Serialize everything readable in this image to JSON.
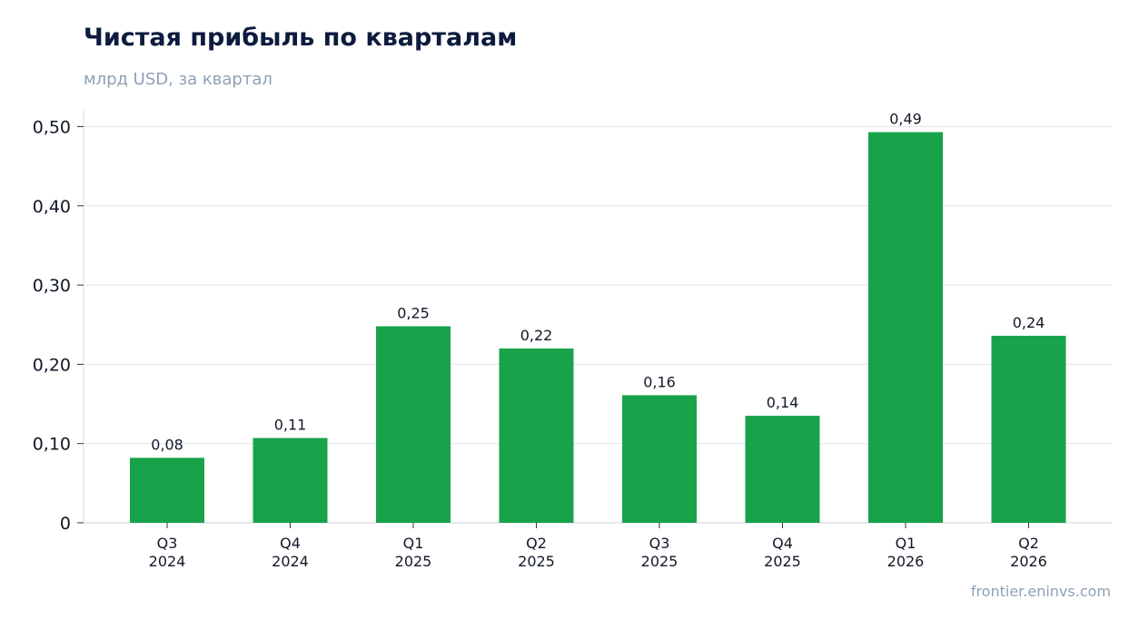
{
  "header": {
    "title": "Чистая прибыль по кварталам",
    "subtitle": "млрд USD, за квартал"
  },
  "footer": {
    "source": "frontier.eninvs.com"
  },
  "chart_data": {
    "type": "bar",
    "title": "Чистая прибыль по кварталам",
    "subtitle": "млрд USD, за квартал",
    "xlabel": "",
    "ylabel": "",
    "categories": [
      [
        "Q3",
        "2024"
      ],
      [
        "Q4",
        "2024"
      ],
      [
        "Q1",
        "2025"
      ],
      [
        "Q2",
        "2025"
      ],
      [
        "Q3",
        "2025"
      ],
      [
        "Q4",
        "2025"
      ],
      [
        "Q1",
        "2026"
      ],
      [
        "Q2",
        "2026"
      ]
    ],
    "values": [
      0.082,
      0.107,
      0.248,
      0.22,
      0.161,
      0.135,
      0.493,
      0.236
    ],
    "value_labels": [
      "0,08",
      "0,11",
      "0,25",
      "0,22",
      "0,16",
      "0,14",
      "0,49",
      "0,24"
    ],
    "ylim": [
      0,
      0.52
    ],
    "yticks": [
      0,
      0.1,
      0.2,
      0.3,
      0.4,
      0.5
    ],
    "ytick_labels": [
      "0",
      "0,10",
      "0,20",
      "0,30",
      "0,40",
      "0,50"
    ],
    "grid": true,
    "legend": "none",
    "colors": {
      "bar": "#18a34a",
      "grid": "#e3e7ee",
      "axis": "#d5dae2",
      "title": "#0d1b3e",
      "subtitle": "#8fa0b4",
      "text": "#111827"
    }
  }
}
